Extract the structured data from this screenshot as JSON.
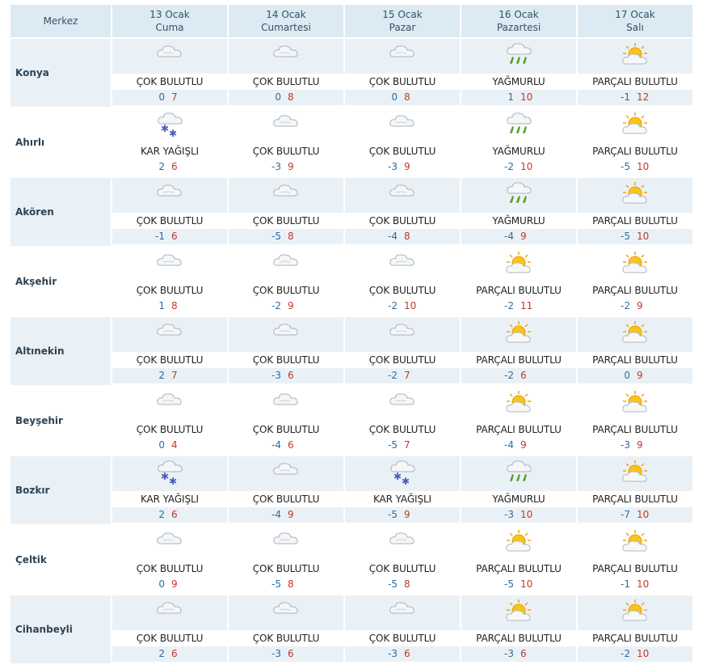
{
  "header": {
    "center_label": "Merkez",
    "days": [
      {
        "date": "13 Ocak",
        "weekday": "Cuma"
      },
      {
        "date": "14 Ocak",
        "weekday": "Cumartesi"
      },
      {
        "date": "15 Ocak",
        "weekday": "Pazar"
      },
      {
        "date": "16 Ocak",
        "weekday": "Pazartesi"
      },
      {
        "date": "17 Ocak",
        "weekday": "Salı"
      }
    ]
  },
  "icons": {
    "cloudy": "cloud-icon",
    "snow": "snow-cloud-icon",
    "rain": "rain-cloud-icon",
    "partly": "sun-cloud-icon"
  },
  "colors": {
    "min_temp": "#2b6ca3",
    "max_temp": "#c0392b",
    "row_tint": "#eaf1f6",
    "header_bg": "#dceaf3"
  },
  "rows": [
    {
      "city": "Konya",
      "days": [
        {
          "icon": "cloudy",
          "cond": "ÇOK BULUTLU",
          "min": "0",
          "max": "7"
        },
        {
          "icon": "cloudy",
          "cond": "ÇOK BULUTLU",
          "min": "0",
          "max": "8"
        },
        {
          "icon": "cloudy",
          "cond": "ÇOK BULUTLU",
          "min": "0",
          "max": "8"
        },
        {
          "icon": "rain",
          "cond": "YAĞMURLU",
          "min": "1",
          "max": "10"
        },
        {
          "icon": "partly",
          "cond": "PARÇALI BULUTLU",
          "min": "-1",
          "max": "12"
        }
      ]
    },
    {
      "city": "Ahırlı",
      "days": [
        {
          "icon": "snow",
          "cond": "KAR YAĞIŞLI",
          "min": "2",
          "max": "6"
        },
        {
          "icon": "cloudy",
          "cond": "ÇOK BULUTLU",
          "min": "-3",
          "max": "9"
        },
        {
          "icon": "cloudy",
          "cond": "ÇOK BULUTLU",
          "min": "-3",
          "max": "9"
        },
        {
          "icon": "rain",
          "cond": "YAĞMURLU",
          "min": "-2",
          "max": "10"
        },
        {
          "icon": "partly",
          "cond": "PARÇALI BULUTLU",
          "min": "-5",
          "max": "10"
        }
      ]
    },
    {
      "city": "Akören",
      "days": [
        {
          "icon": "cloudy",
          "cond": "ÇOK BULUTLU",
          "min": "-1",
          "max": "6"
        },
        {
          "icon": "cloudy",
          "cond": "ÇOK BULUTLU",
          "min": "-5",
          "max": "8"
        },
        {
          "icon": "cloudy",
          "cond": "ÇOK BULUTLU",
          "min": "-4",
          "max": "8"
        },
        {
          "icon": "rain",
          "cond": "YAĞMURLU",
          "min": "-4",
          "max": "9"
        },
        {
          "icon": "partly",
          "cond": "PARÇALI BULUTLU",
          "min": "-5",
          "max": "10"
        }
      ]
    },
    {
      "city": "Akşehir",
      "days": [
        {
          "icon": "cloudy",
          "cond": "ÇOK BULUTLU",
          "min": "1",
          "max": "8"
        },
        {
          "icon": "cloudy",
          "cond": "ÇOK BULUTLU",
          "min": "-2",
          "max": "9"
        },
        {
          "icon": "cloudy",
          "cond": "ÇOK BULUTLU",
          "min": "-2",
          "max": "10"
        },
        {
          "icon": "partly",
          "cond": "PARÇALI BULUTLU",
          "min": "-2",
          "max": "11"
        },
        {
          "icon": "partly",
          "cond": "PARÇALI BULUTLU",
          "min": "-2",
          "max": "9"
        }
      ]
    },
    {
      "city": "Altınekin",
      "days": [
        {
          "icon": "cloudy",
          "cond": "ÇOK BULUTLU",
          "min": "2",
          "max": "7"
        },
        {
          "icon": "cloudy",
          "cond": "ÇOK BULUTLU",
          "min": "-3",
          "max": "6"
        },
        {
          "icon": "cloudy",
          "cond": "ÇOK BULUTLU",
          "min": "-2",
          "max": "7"
        },
        {
          "icon": "partly",
          "cond": "PARÇALI BULUTLU",
          "min": "-2",
          "max": "6"
        },
        {
          "icon": "partly",
          "cond": "PARÇALI BULUTLU",
          "min": "0",
          "max": "9"
        }
      ]
    },
    {
      "city": "Beyşehir",
      "days": [
        {
          "icon": "cloudy",
          "cond": "ÇOK BULUTLU",
          "min": "0",
          "max": "4"
        },
        {
          "icon": "cloudy",
          "cond": "ÇOK BULUTLU",
          "min": "-4",
          "max": "6"
        },
        {
          "icon": "cloudy",
          "cond": "ÇOK BULUTLU",
          "min": "-5",
          "max": "7"
        },
        {
          "icon": "partly",
          "cond": "PARÇALI BULUTLU",
          "min": "-4",
          "max": "9"
        },
        {
          "icon": "partly",
          "cond": "PARÇALI BULUTLU",
          "min": "-3",
          "max": "9"
        }
      ]
    },
    {
      "city": "Bozkır",
      "days": [
        {
          "icon": "snow",
          "cond": "KAR YAĞIŞLI",
          "min": "2",
          "max": "6"
        },
        {
          "icon": "cloudy",
          "cond": "ÇOK BULUTLU",
          "min": "-4",
          "max": "9"
        },
        {
          "icon": "snow",
          "cond": "KAR YAĞIŞLI",
          "min": "-5",
          "max": "9"
        },
        {
          "icon": "rain",
          "cond": "YAĞMURLU",
          "min": "-3",
          "max": "10"
        },
        {
          "icon": "partly",
          "cond": "PARÇALI BULUTLU",
          "min": "-7",
          "max": "10"
        }
      ]
    },
    {
      "city": "Çeltik",
      "days": [
        {
          "icon": "cloudy",
          "cond": "ÇOK BULUTLU",
          "min": "0",
          "max": "9"
        },
        {
          "icon": "cloudy",
          "cond": "ÇOK BULUTLU",
          "min": "-5",
          "max": "8"
        },
        {
          "icon": "cloudy",
          "cond": "ÇOK BULUTLU",
          "min": "-5",
          "max": "8"
        },
        {
          "icon": "partly",
          "cond": "PARÇALI BULUTLU",
          "min": "-5",
          "max": "10"
        },
        {
          "icon": "partly",
          "cond": "PARÇALI BULUTLU",
          "min": "-1",
          "max": "10"
        }
      ]
    },
    {
      "city": "Cihanbeyli",
      "days": [
        {
          "icon": "cloudy",
          "cond": "ÇOK BULUTLU",
          "min": "2",
          "max": "6"
        },
        {
          "icon": "cloudy",
          "cond": "ÇOK BULUTLU",
          "min": "-3",
          "max": "6"
        },
        {
          "icon": "cloudy",
          "cond": "ÇOK BULUTLU",
          "min": "-3",
          "max": "6"
        },
        {
          "icon": "partly",
          "cond": "PARÇALI BULUTLU",
          "min": "-3",
          "max": "6"
        },
        {
          "icon": "partly",
          "cond": "PARÇALI BULUTLU",
          "min": "-2",
          "max": "10"
        }
      ]
    }
  ]
}
